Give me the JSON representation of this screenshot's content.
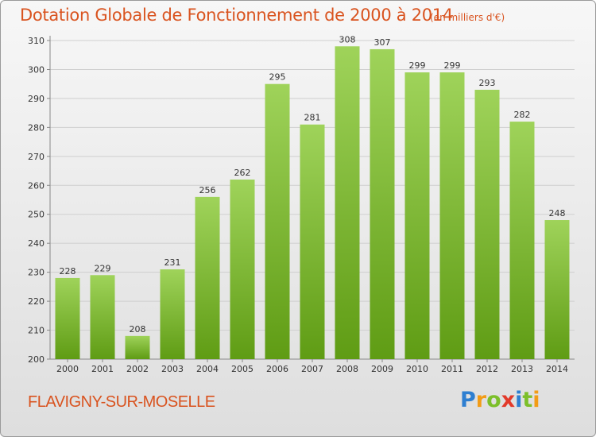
{
  "header": {
    "title": "Dotation Globale de Fonctionnement de 2000 à 2014",
    "unit_note": "(en milliers d'€)"
  },
  "footer": {
    "commune": "FLAVIGNY-SUR-MOSELLE",
    "logo_text": "Proxiti",
    "logo_letters": [
      "P",
      "r",
      "o",
      "x",
      "i",
      "t",
      "i"
    ],
    "logo_colors": [
      "#2e7fd1",
      "#f29c16",
      "#7cbf2a",
      "#e23a2a",
      "#2e7fd1",
      "#7cbf2a",
      "#f29c16"
    ]
  },
  "chart_data": {
    "type": "bar",
    "categories": [
      "2000",
      "2001",
      "2002",
      "2003",
      "2004",
      "2005",
      "2006",
      "2007",
      "2008",
      "2009",
      "2010",
      "2011",
      "2012",
      "2013",
      "2014"
    ],
    "values": [
      228,
      229,
      208,
      231,
      256,
      262,
      295,
      281,
      308,
      307,
      299,
      299,
      293,
      282,
      248
    ],
    "data_labels": [
      "228",
      "229",
      "208",
      "231",
      "256",
      "262",
      "295",
      "281",
      "308",
      "307",
      "299",
      "299",
      "293",
      "282",
      "248"
    ],
    "y_ticks": [
      "200",
      "210",
      "220",
      "230",
      "240",
      "250",
      "260",
      "270",
      "280",
      "290",
      "300",
      "310"
    ],
    "ylim": [
      200,
      310
    ],
    "grid": true,
    "bar_color_top": "#9fd35a",
    "bar_color_bottom": "#5f9c14",
    "title": "Dotation Globale de Fonctionnement de 2000 à 2014",
    "xlabel": "",
    "ylabel": ""
  }
}
